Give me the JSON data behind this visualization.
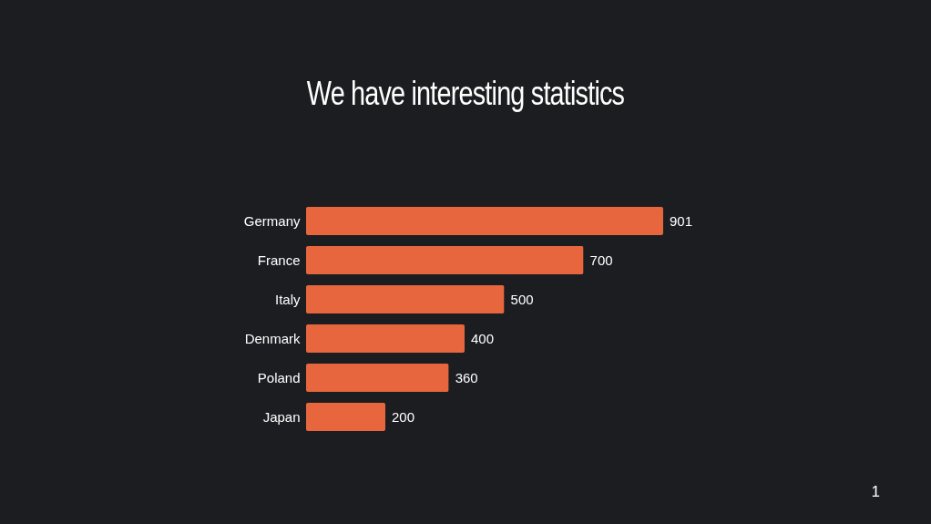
{
  "chart_data": {
    "type": "bar",
    "title": "We have interesting statistics",
    "orientation": "horizontal",
    "categories": [
      "Germany",
      "France",
      "Italy",
      "Denmark",
      "Poland",
      "Japan"
    ],
    "values": [
      901,
      700,
      500,
      400,
      360,
      200
    ],
    "color": "#e8663d",
    "data_labels": true,
    "grid": false,
    "tick_labels": "y",
    "annotations": [
      "1"
    ]
  }
}
